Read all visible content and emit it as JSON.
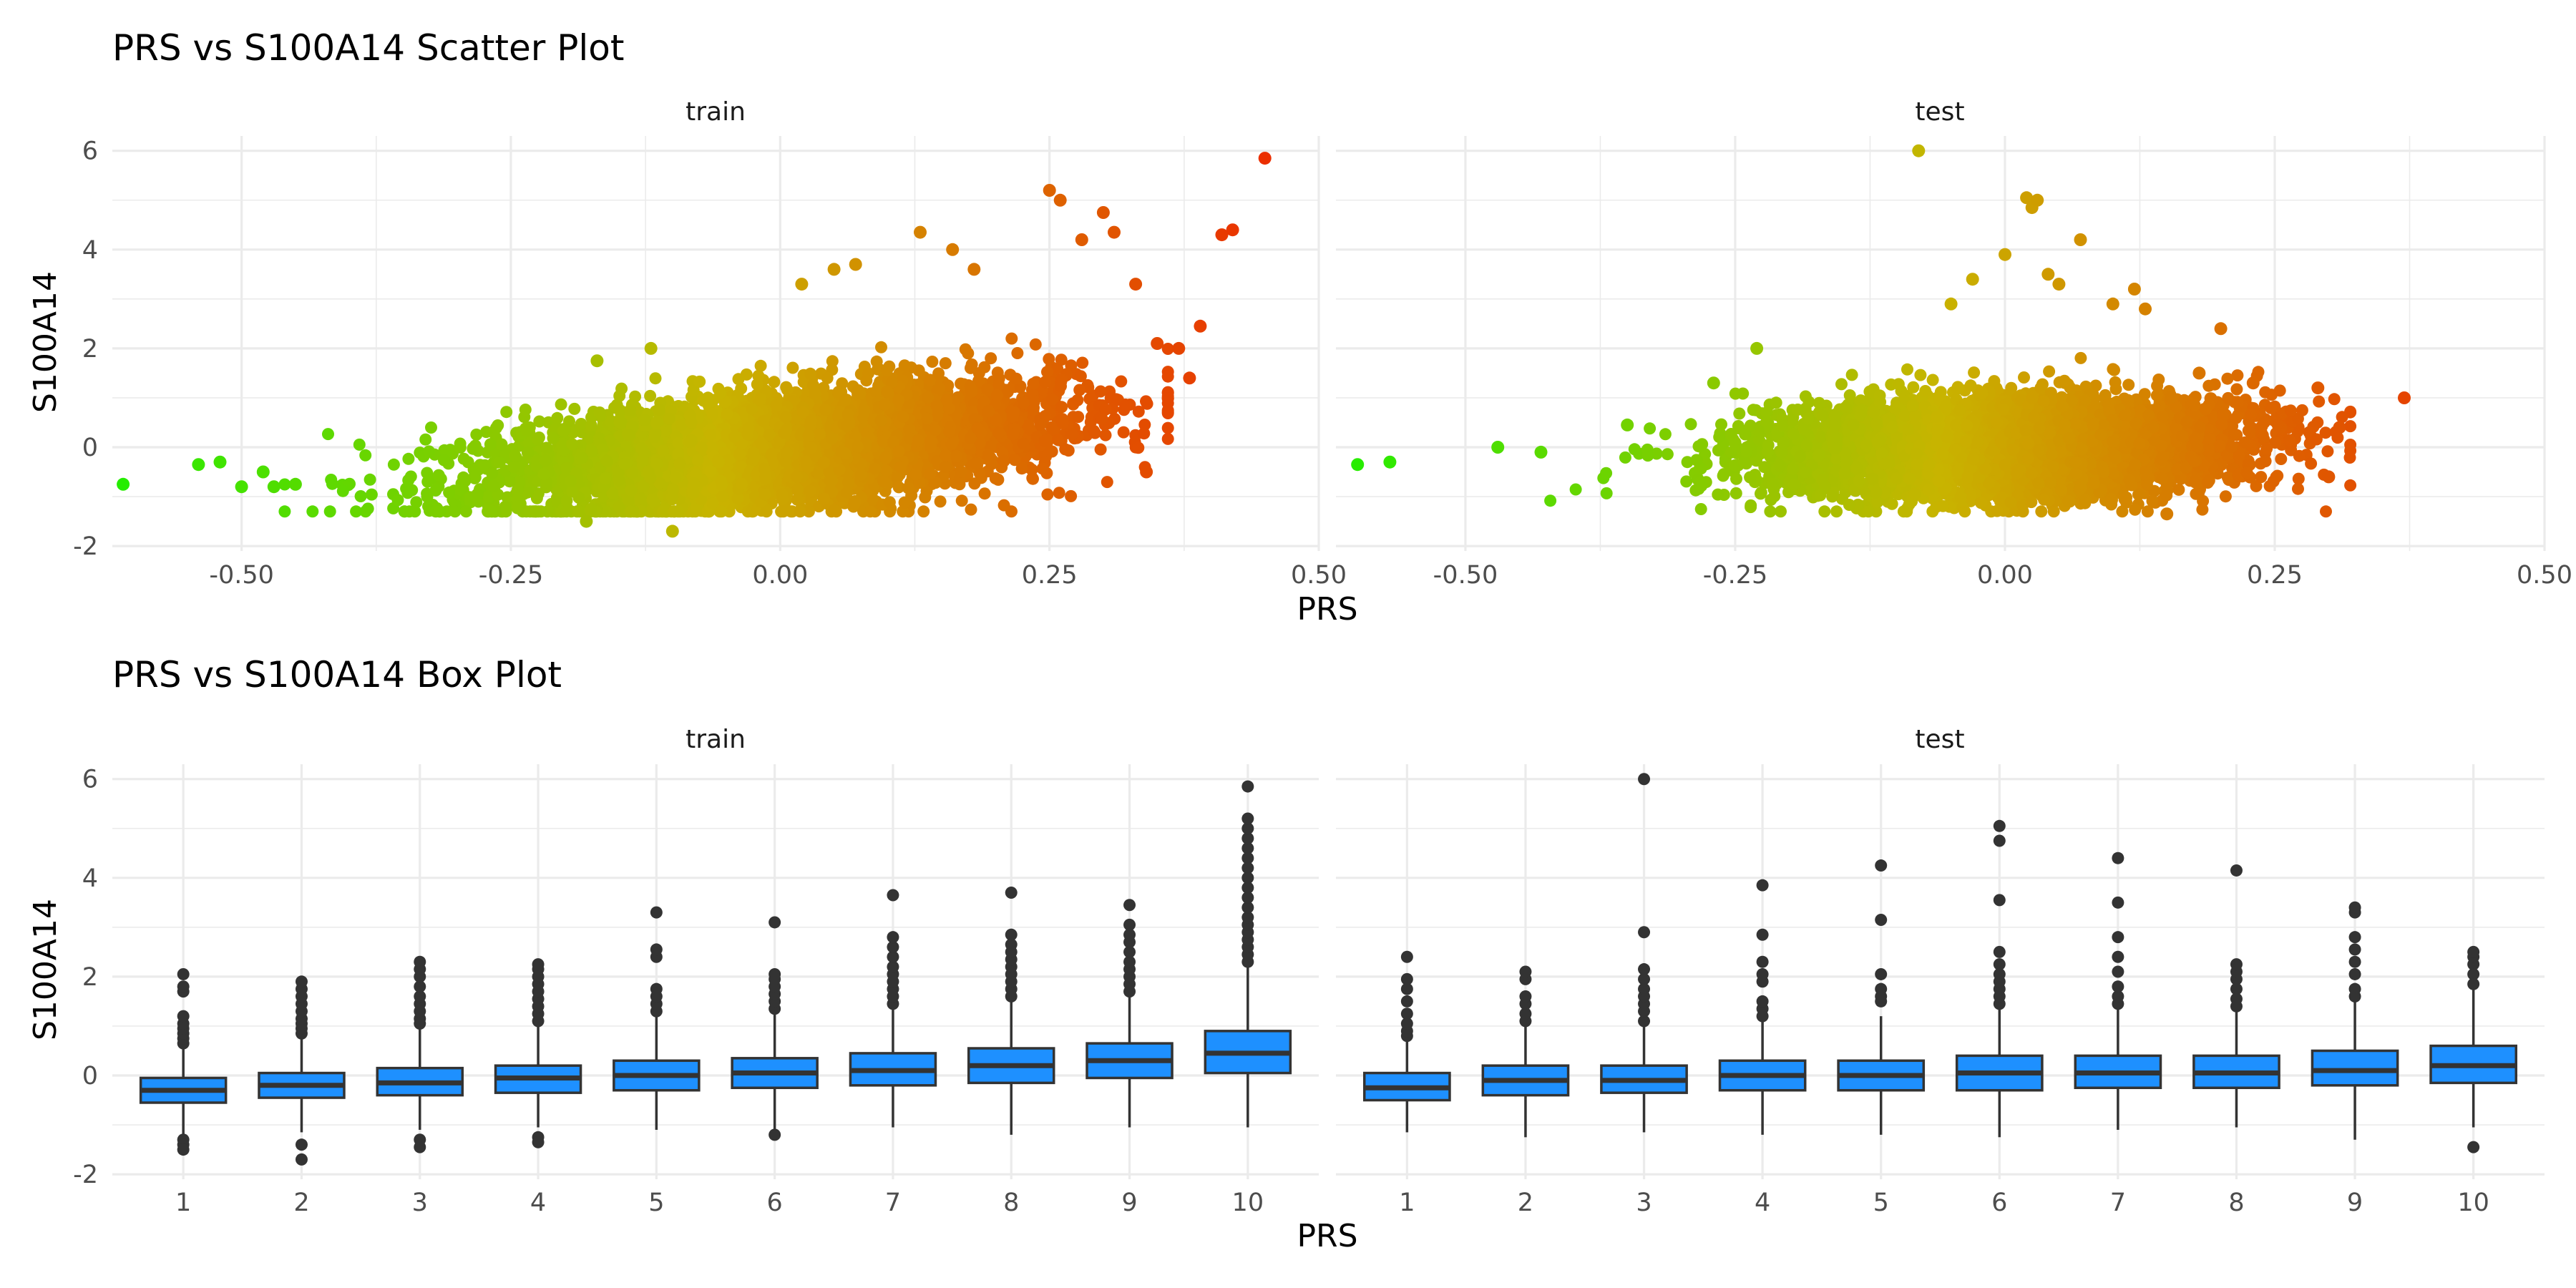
{
  "figure": {
    "scatter_title": "PRS vs S100A14 Scatter Plot",
    "box_title": "PRS vs S100A14 Box Plot",
    "xlabel": "PRS",
    "ylabel": "S100A14"
  },
  "chart_data": [
    {
      "type": "scatter",
      "title": "PRS vs S100A14 Scatter Plot",
      "xlabel": "PRS",
      "ylabel": "S100A14",
      "facets": [
        "train",
        "test"
      ],
      "xlim": [
        -0.62,
        0.5
      ],
      "ylim": [
        -2.1,
        6.3
      ],
      "x_ticks": [
        "-0.50",
        "-0.25",
        "0.00",
        "0.25",
        "0.50"
      ],
      "x_tick_values": [
        -0.5,
        -0.25,
        0,
        0.25,
        0.5
      ],
      "y_ticks": [
        "-2",
        "0",
        "2",
        "4",
        "6"
      ],
      "y_tick_values": [
        -2,
        0,
        2,
        4,
        6
      ],
      "color_gradient": {
        "low": "#22ee00",
        "mid": "#c8b400",
        "high": "#ee2200",
        "by": "PRS"
      },
      "dense_cloud": {
        "train": {
          "x_mean": 0.0,
          "x_sd": 0.13,
          "slope": 2.2,
          "y_sd": 0.55
        },
        "test": {
          "x_mean": 0.0,
          "x_sd": 0.11,
          "slope": 0.6,
          "y_sd": 0.5
        }
      },
      "series": [
        {
          "name": "train",
          "outliers": [
            [
              -0.61,
              -0.75
            ],
            [
              -0.54,
              -0.35
            ],
            [
              -0.52,
              -0.3
            ],
            [
              -0.5,
              -0.8
            ],
            [
              -0.48,
              -0.5
            ],
            [
              -0.47,
              -0.8
            ],
            [
              -0.45,
              -0.75
            ],
            [
              -0.18,
              -1.5
            ],
            [
              -0.1,
              -1.7
            ],
            [
              -0.17,
              1.75
            ],
            [
              -0.12,
              2.0
            ],
            [
              0.02,
              3.3
            ],
            [
              0.05,
              3.6
            ],
            [
              0.07,
              3.7
            ],
            [
              0.13,
              4.35
            ],
            [
              0.16,
              4.0
            ],
            [
              0.18,
              3.6
            ],
            [
              0.25,
              5.2
            ],
            [
              0.26,
              5.0
            ],
            [
              0.28,
              4.2
            ],
            [
              0.3,
              4.75
            ],
            [
              0.31,
              4.35
            ],
            [
              0.33,
              3.3
            ],
            [
              0.35,
              2.1
            ],
            [
              0.37,
              2.0
            ],
            [
              0.38,
              1.4
            ],
            [
              0.39,
              2.45
            ],
            [
              0.34,
              -0.5
            ],
            [
              0.41,
              4.3
            ],
            [
              0.42,
              4.4
            ],
            [
              0.45,
              5.85
            ]
          ]
        },
        {
          "name": "test",
          "outliers": [
            [
              -0.6,
              -0.35
            ],
            [
              -0.57,
              -0.3
            ],
            [
              -0.47,
              0.0
            ],
            [
              -0.43,
              -0.1
            ],
            [
              -0.35,
              0.45
            ],
            [
              -0.27,
              1.3
            ],
            [
              -0.23,
              2.0
            ],
            [
              -0.08,
              6.0
            ],
            [
              -0.05,
              2.9
            ],
            [
              -0.03,
              3.4
            ],
            [
              0.0,
              3.9
            ],
            [
              0.02,
              5.05
            ],
            [
              0.025,
              4.85
            ],
            [
              0.03,
              5.0
            ],
            [
              0.04,
              3.5
            ],
            [
              0.05,
              3.3
            ],
            [
              0.07,
              4.2
            ],
            [
              0.12,
              3.2
            ],
            [
              0.1,
              2.9
            ],
            [
              0.13,
              2.8
            ],
            [
              0.2,
              2.4
            ],
            [
              0.18,
              1.5
            ],
            [
              0.23,
              1.3
            ],
            [
              0.29,
              1.2
            ],
            [
              0.3,
              -0.6
            ],
            [
              0.37,
              1.0
            ],
            [
              0.31,
              0.4
            ],
            [
              0.15,
              -1.35
            ]
          ]
        }
      ]
    },
    {
      "type": "box",
      "title": "PRS vs S100A14 Box Plot",
      "xlabel": "PRS",
      "ylabel": "S100A14",
      "facets": [
        "train",
        "test"
      ],
      "categories": [
        "1",
        "2",
        "3",
        "4",
        "5",
        "6",
        "7",
        "8",
        "9",
        "10"
      ],
      "ylim": [
        -2.1,
        6.3
      ],
      "y_ticks": [
        "-2",
        "0",
        "2",
        "4",
        "6"
      ],
      "y_tick_values": [
        -2,
        0,
        2,
        4,
        6
      ],
      "box_fill": "#1e90ff",
      "series": [
        {
          "name": "train",
          "boxes": [
            {
              "q1": -0.55,
              "median": -0.3,
              "q3": -0.05,
              "lo": -1.2,
              "hi": 0.6,
              "outliers": [
                0.65,
                0.75,
                0.85,
                0.95,
                1.05,
                1.2,
                1.7,
                1.8,
                2.05,
                -1.3,
                -1.4,
                -1.5
              ]
            },
            {
              "q1": -0.45,
              "median": -0.2,
              "q3": 0.05,
              "lo": -1.15,
              "hi": 0.8,
              "outliers": [
                0.85,
                0.95,
                1.05,
                1.15,
                1.3,
                1.45,
                1.6,
                1.75,
                1.9,
                -1.4,
                -1.7
              ]
            },
            {
              "q1": -0.4,
              "median": -0.15,
              "q3": 0.15,
              "lo": -1.1,
              "hi": 1.0,
              "outliers": [
                1.05,
                1.15,
                1.3,
                1.45,
                1.6,
                1.8,
                2.0,
                2.15,
                2.3,
                -1.3,
                -1.45
              ]
            },
            {
              "q1": -0.35,
              "median": -0.05,
              "q3": 0.2,
              "lo": -1.05,
              "hi": 1.05,
              "outliers": [
                1.1,
                1.25,
                1.4,
                1.55,
                1.7,
                1.85,
                2.0,
                2.15,
                2.25,
                -1.25,
                -1.35
              ]
            },
            {
              "q1": -0.3,
              "median": 0.0,
              "q3": 0.3,
              "lo": -1.1,
              "hi": 1.2,
              "outliers": [
                1.3,
                1.45,
                1.6,
                1.75,
                2.4,
                2.55,
                3.3
              ]
            },
            {
              "q1": -0.25,
              "median": 0.05,
              "q3": 0.35,
              "lo": -1.1,
              "hi": 1.3,
              "outliers": [
                1.35,
                1.5,
                1.65,
                1.8,
                1.95,
                2.05,
                3.1,
                -1.2
              ]
            },
            {
              "q1": -0.2,
              "median": 0.1,
              "q3": 0.45,
              "lo": -1.05,
              "hi": 1.4,
              "outliers": [
                1.45,
                1.6,
                1.75,
                1.9,
                2.05,
                2.2,
                2.4,
                2.6,
                2.8,
                3.65
              ]
            },
            {
              "q1": -0.15,
              "median": 0.2,
              "q3": 0.55,
              "lo": -1.2,
              "hi": 1.55,
              "outliers": [
                1.6,
                1.75,
                1.9,
                2.05,
                2.2,
                2.35,
                2.5,
                2.65,
                2.85,
                3.7
              ]
            },
            {
              "q1": -0.05,
              "median": 0.3,
              "q3": 0.65,
              "lo": -1.05,
              "hi": 1.65,
              "outliers": [
                1.7,
                1.85,
                2.0,
                2.15,
                2.3,
                2.5,
                2.7,
                2.85,
                3.05,
                3.45
              ]
            },
            {
              "q1": 0.05,
              "median": 0.45,
              "q3": 0.9,
              "lo": -1.05,
              "hi": 2.2,
              "outliers": [
                2.3,
                2.45,
                2.6,
                2.75,
                2.9,
                3.05,
                3.2,
                3.4,
                3.6,
                3.8,
                4.0,
                4.2,
                4.4,
                4.6,
                4.8,
                5.0,
                5.2,
                5.85
              ]
            }
          ]
        },
        {
          "name": "test",
          "boxes": [
            {
              "q1": -0.5,
              "median": -0.25,
              "q3": 0.05,
              "lo": -1.15,
              "hi": 0.7,
              "outliers": [
                0.8,
                0.9,
                1.05,
                1.25,
                1.5,
                1.75,
                1.95,
                2.4
              ]
            },
            {
              "q1": -0.4,
              "median": -0.1,
              "q3": 0.2,
              "lo": -1.25,
              "hi": 1.0,
              "outliers": [
                1.1,
                1.25,
                1.45,
                1.6,
                1.95,
                2.1
              ]
            },
            {
              "q1": -0.35,
              "median": -0.1,
              "q3": 0.2,
              "lo": -1.15,
              "hi": 1.0,
              "outliers": [
                1.1,
                1.3,
                1.45,
                1.6,
                1.75,
                1.95,
                2.15,
                2.9,
                6.0
              ]
            },
            {
              "q1": -0.3,
              "median": 0.0,
              "q3": 0.3,
              "lo": -1.2,
              "hi": 1.1,
              "outliers": [
                1.2,
                1.35,
                1.5,
                1.9,
                2.05,
                2.3,
                2.85,
                3.85
              ]
            },
            {
              "q1": -0.3,
              "median": 0.0,
              "q3": 0.3,
              "lo": -1.2,
              "hi": 1.2,
              "outliers": [
                1.5,
                1.6,
                1.75,
                2.05,
                3.15,
                4.25
              ]
            },
            {
              "q1": -0.3,
              "median": 0.05,
              "q3": 0.4,
              "lo": -1.25,
              "hi": 1.35,
              "outliers": [
                1.45,
                1.6,
                1.75,
                1.9,
                2.05,
                2.25,
                2.5,
                3.55,
                4.75,
                5.05
              ]
            },
            {
              "q1": -0.25,
              "median": 0.05,
              "q3": 0.4,
              "lo": -1.1,
              "hi": 1.35,
              "outliers": [
                1.45,
                1.6,
                1.8,
                2.1,
                2.4,
                2.8,
                3.5,
                4.4
              ]
            },
            {
              "q1": -0.25,
              "median": 0.05,
              "q3": 0.4,
              "lo": -1.05,
              "hi": 1.3,
              "outliers": [
                1.4,
                1.55,
                1.75,
                1.95,
                2.1,
                2.25,
                4.15
              ]
            },
            {
              "q1": -0.2,
              "median": 0.1,
              "q3": 0.5,
              "lo": -1.3,
              "hi": 1.5,
              "outliers": [
                1.6,
                1.75,
                2.05,
                2.3,
                2.55,
                2.8,
                3.3,
                3.4
              ]
            },
            {
              "q1": -0.15,
              "median": 0.2,
              "q3": 0.6,
              "lo": -1.05,
              "hi": 1.75,
              "outliers": [
                1.85,
                2.05,
                2.25,
                2.4,
                2.5,
                -1.45
              ]
            }
          ]
        }
      ]
    }
  ]
}
